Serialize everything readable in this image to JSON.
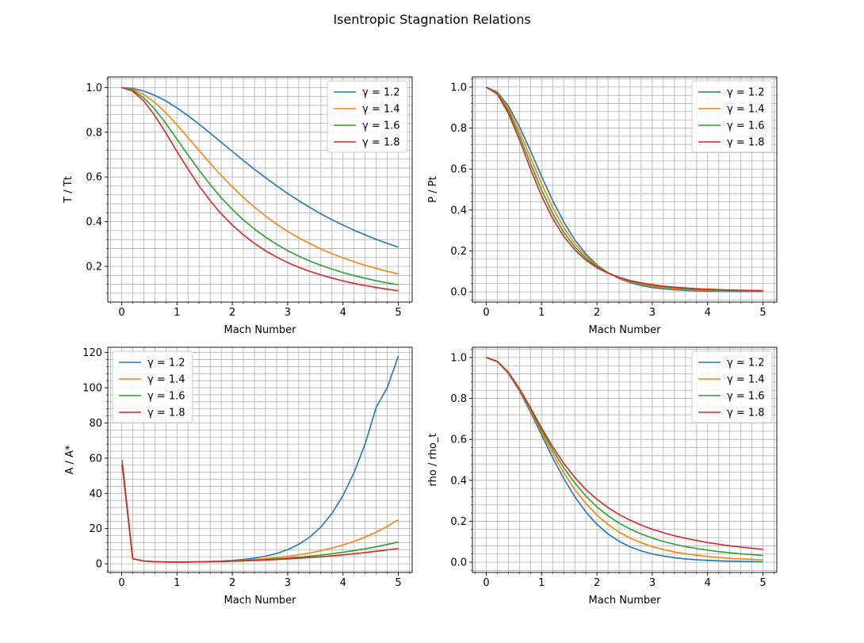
{
  "figure": {
    "title": "Isentropic Stagnation Relations"
  },
  "chart_data": [
    {
      "type": "line",
      "xlabel": "Mach Number",
      "ylabel": "T / Tt",
      "xlim": [
        -0.25,
        5.25
      ],
      "ylim": [
        0.0405,
        1.0475
      ],
      "xticks": [
        0,
        1,
        2,
        3,
        4,
        5
      ],
      "yticks": [
        0.2,
        0.4,
        0.6,
        0.8,
        1.0
      ],
      "ytick_labels": [
        "0.2",
        "0.4",
        "0.6",
        "0.8",
        "1.0"
      ],
      "grid": true,
      "legend": "upper right",
      "x": [
        0,
        0.2,
        0.4,
        0.6,
        0.8,
        1.0,
        1.2,
        1.4,
        1.6,
        1.8,
        2.0,
        2.2,
        2.4,
        2.6,
        2.8,
        3.0,
        3.2,
        3.4,
        3.6,
        3.8,
        4.0,
        4.2,
        4.4,
        4.6,
        4.8,
        5.0
      ],
      "series": [
        {
          "name": "γ = 1.2",
          "color": "#1f77b4",
          "values": [
            1.0,
            0.996,
            0.984,
            0.965,
            0.94,
            0.909,
            0.874,
            0.836,
            0.796,
            0.755,
            0.714,
            0.674,
            0.634,
            0.597,
            0.561,
            0.526,
            0.494,
            0.464,
            0.435,
            0.409,
            0.385,
            0.362,
            0.341,
            0.321,
            0.303,
            0.286
          ]
        },
        {
          "name": "γ = 1.4",
          "color": "#ff7f0e",
          "values": [
            1.0,
            0.992,
            0.969,
            0.933,
            0.887,
            0.833,
            0.776,
            0.718,
            0.661,
            0.607,
            0.556,
            0.508,
            0.465,
            0.425,
            0.389,
            0.357,
            0.328,
            0.302,
            0.278,
            0.257,
            0.238,
            0.221,
            0.205,
            0.191,
            0.178,
            0.167
          ]
        },
        {
          "name": "γ = 1.6",
          "color": "#2ca02c",
          "values": [
            1.0,
            0.988,
            0.954,
            0.903,
            0.839,
            0.769,
            0.698,
            0.63,
            0.566,
            0.507,
            0.455,
            0.408,
            0.367,
            0.331,
            0.299,
            0.27,
            0.246,
            0.224,
            0.205,
            0.188,
            0.172,
            0.159,
            0.147,
            0.136,
            0.126,
            0.118
          ]
        },
        {
          "name": "γ = 1.8",
          "color": "#d62728",
          "values": [
            1.0,
            0.984,
            0.94,
            0.874,
            0.796,
            0.714,
            0.635,
            0.56,
            0.494,
            0.435,
            0.385,
            0.341,
            0.303,
            0.27,
            0.242,
            0.217,
            0.196,
            0.178,
            0.162,
            0.148,
            0.135,
            0.124,
            0.114,
            0.106,
            0.098,
            0.091
          ]
        }
      ]
    },
    {
      "type": "line",
      "xlabel": "Mach Number",
      "ylabel": "P / Pt",
      "xlim": [
        -0.25,
        5.25
      ],
      "ylim": [
        -0.05,
        1.05
      ],
      "xticks": [
        0,
        1,
        2,
        3,
        4,
        5
      ],
      "yticks": [
        0.0,
        0.2,
        0.4,
        0.6,
        0.8,
        1.0
      ],
      "ytick_labels": [
        "0.0",
        "0.2",
        "0.4",
        "0.6",
        "0.8",
        "1.0"
      ],
      "grid": true,
      "legend": "upper right",
      "x": [
        0,
        0.2,
        0.4,
        0.6,
        0.8,
        1.0,
        1.2,
        1.4,
        1.6,
        1.8,
        2.0,
        2.2,
        2.4,
        2.6,
        2.8,
        3.0,
        3.2,
        3.4,
        3.6,
        3.8,
        4.0,
        4.2,
        4.4,
        4.6,
        4.8,
        5.0
      ],
      "series": [
        {
          "name": "γ = 1.2",
          "color": "#1f77b4",
          "values": [
            1.0,
            0.976,
            0.908,
            0.807,
            0.689,
            0.564,
            0.446,
            0.342,
            0.254,
            0.185,
            0.132,
            0.093,
            0.065,
            0.045,
            0.031,
            0.021,
            0.015,
            0.01,
            0.007,
            0.005,
            0.003,
            0.002,
            0.002,
            0.001,
            0.001,
            0.001
          ]
        },
        {
          "name": "γ = 1.4",
          "color": "#ff7f0e",
          "values": [
            1.0,
            0.973,
            0.896,
            0.784,
            0.656,
            0.528,
            0.412,
            0.314,
            0.235,
            0.174,
            0.128,
            0.094,
            0.068,
            0.05,
            0.037,
            0.027,
            0.02,
            0.015,
            0.011,
            0.009,
            0.007,
            0.005,
            0.004,
            0.003,
            0.002,
            0.002
          ]
        },
        {
          "name": "γ = 1.6",
          "color": "#2ca02c",
          "values": [
            1.0,
            0.97,
            0.884,
            0.762,
            0.627,
            0.497,
            0.383,
            0.291,
            0.219,
            0.164,
            0.123,
            0.093,
            0.07,
            0.053,
            0.041,
            0.032,
            0.025,
            0.019,
            0.015,
            0.012,
            0.01,
            0.008,
            0.006,
            0.005,
            0.004,
            0.004
          ]
        },
        {
          "name": "γ = 1.8",
          "color": "#d62728",
          "values": [
            1.0,
            0.966,
            0.872,
            0.742,
            0.6,
            0.468,
            0.358,
            0.271,
            0.205,
            0.155,
            0.118,
            0.091,
            0.071,
            0.055,
            0.044,
            0.035,
            0.028,
            0.023,
            0.019,
            0.015,
            0.013,
            0.011,
            0.009,
            0.008,
            0.007,
            0.006
          ]
        }
      ]
    },
    {
      "type": "line",
      "xlabel": "Mach Number",
      "ylabel": "A / A*",
      "xlim": [
        -0.25,
        5.25
      ],
      "ylim": [
        -4.9,
        123.0
      ],
      "xticks": [
        0,
        1,
        2,
        3,
        4,
        5
      ],
      "yticks": [
        0,
        20,
        40,
        60,
        80,
        100,
        120
      ],
      "ytick_labels": [
        "0",
        "20",
        "40",
        "60",
        "80",
        "100",
        "120"
      ],
      "grid": true,
      "legend": "upper left",
      "x": [
        0.01,
        0.2,
        0.4,
        0.6,
        0.8,
        1.0,
        1.2,
        1.4,
        1.6,
        1.8,
        2.0,
        2.2,
        2.4,
        2.6,
        2.8,
        3.0,
        3.2,
        3.4,
        3.6,
        3.8,
        4.0,
        4.2,
        4.4,
        4.6,
        4.8,
        5.0
      ],
      "series": [
        {
          "name": "γ = 1.2",
          "color": "#1f77b4",
          "values": [
            59.0,
            2.99,
            1.6,
            1.2,
            1.04,
            1.0,
            1.03,
            1.13,
            1.3,
            1.56,
            1.94,
            2.48,
            3.25,
            4.34,
            5.87,
            8.03,
            11.1,
            15.2,
            20.9,
            28.6,
            38.8,
            51.9,
            68.1,
            88.9,
            100.1,
            118.0
          ]
        },
        {
          "name": "γ = 1.4",
          "color": "#ff7f0e",
          "values": [
            57.9,
            2.96,
            1.59,
            1.19,
            1.04,
            1.0,
            1.03,
            1.12,
            1.25,
            1.44,
            1.69,
            2.01,
            2.4,
            2.9,
            3.5,
            4.23,
            5.12,
            6.18,
            7.45,
            8.95,
            10.72,
            12.79,
            15.21,
            18.02,
            21.26,
            25.0
          ]
        },
        {
          "name": "γ = 1.6",
          "color": "#2ca02c",
          "values": [
            56.9,
            2.93,
            1.58,
            1.19,
            1.04,
            1.0,
            1.03,
            1.1,
            1.22,
            1.37,
            1.56,
            1.79,
            2.07,
            2.4,
            2.78,
            3.23,
            3.74,
            4.32,
            4.98,
            5.72,
            6.56,
            7.5,
            8.54,
            9.71,
            10.99,
            12.4
          ]
        },
        {
          "name": "γ = 1.8",
          "color": "#d62728",
          "values": [
            55.9,
            2.9,
            1.57,
            1.18,
            1.04,
            1.0,
            1.02,
            1.09,
            1.19,
            1.32,
            1.48,
            1.67,
            1.9,
            2.16,
            2.45,
            2.79,
            3.16,
            3.58,
            4.04,
            4.55,
            5.11,
            5.72,
            6.38,
            7.1,
            7.88,
            8.72
          ]
        }
      ]
    },
    {
      "type": "line",
      "xlabel": "Mach Number",
      "ylabel": "rho / rho_t",
      "xlim": [
        -0.25,
        5.25
      ],
      "ylim": [
        -0.05,
        1.05
      ],
      "xticks": [
        0,
        1,
        2,
        3,
        4,
        5
      ],
      "yticks": [
        0.0,
        0.2,
        0.4,
        0.6,
        0.8,
        1.0
      ],
      "ytick_labels": [
        "0.0",
        "0.2",
        "0.4",
        "0.6",
        "0.8",
        "1.0"
      ],
      "grid": true,
      "legend": "upper right",
      "x": [
        0,
        0.2,
        0.4,
        0.6,
        0.8,
        1.0,
        1.2,
        1.4,
        1.6,
        1.8,
        2.0,
        2.2,
        2.4,
        2.6,
        2.8,
        3.0,
        3.2,
        3.4,
        3.6,
        3.8,
        4.0,
        4.2,
        4.4,
        4.6,
        4.8,
        5.0
      ],
      "series": [
        {
          "name": "γ = 1.2",
          "color": "#1f77b4",
          "values": [
            1.0,
            0.98,
            0.922,
            0.836,
            0.733,
            0.621,
            0.51,
            0.409,
            0.32,
            0.245,
            0.185,
            0.138,
            0.102,
            0.075,
            0.055,
            0.04,
            0.03,
            0.022,
            0.016,
            0.012,
            0.009,
            0.007,
            0.005,
            0.004,
            0.003,
            0.002
          ]
        },
        {
          "name": "γ = 1.4",
          "color": "#ff7f0e",
          "values": [
            1.0,
            0.98,
            0.924,
            0.84,
            0.74,
            0.634,
            0.531,
            0.437,
            0.355,
            0.287,
            0.23,
            0.184,
            0.147,
            0.118,
            0.095,
            0.076,
            0.062,
            0.05,
            0.041,
            0.034,
            0.028,
            0.023,
            0.019,
            0.016,
            0.014,
            0.011
          ]
        },
        {
          "name": "γ = 1.6",
          "color": "#2ca02c",
          "values": [
            1.0,
            0.981,
            0.926,
            0.844,
            0.747,
            0.646,
            0.549,
            0.462,
            0.387,
            0.323,
            0.27,
            0.227,
            0.191,
            0.162,
            0.138,
            0.118,
            0.101,
            0.088,
            0.076,
            0.067,
            0.059,
            0.052,
            0.046,
            0.041,
            0.037,
            0.033
          ]
        },
        {
          "name": "γ = 1.8",
          "color": "#d62728",
          "values": [
            1.0,
            0.981,
            0.928,
            0.848,
            0.754,
            0.656,
            0.564,
            0.483,
            0.414,
            0.355,
            0.307,
            0.267,
            0.233,
            0.205,
            0.181,
            0.161,
            0.144,
            0.129,
            0.117,
            0.106,
            0.096,
            0.088,
            0.08,
            0.074,
            0.068,
            0.063
          ]
        }
      ]
    }
  ]
}
